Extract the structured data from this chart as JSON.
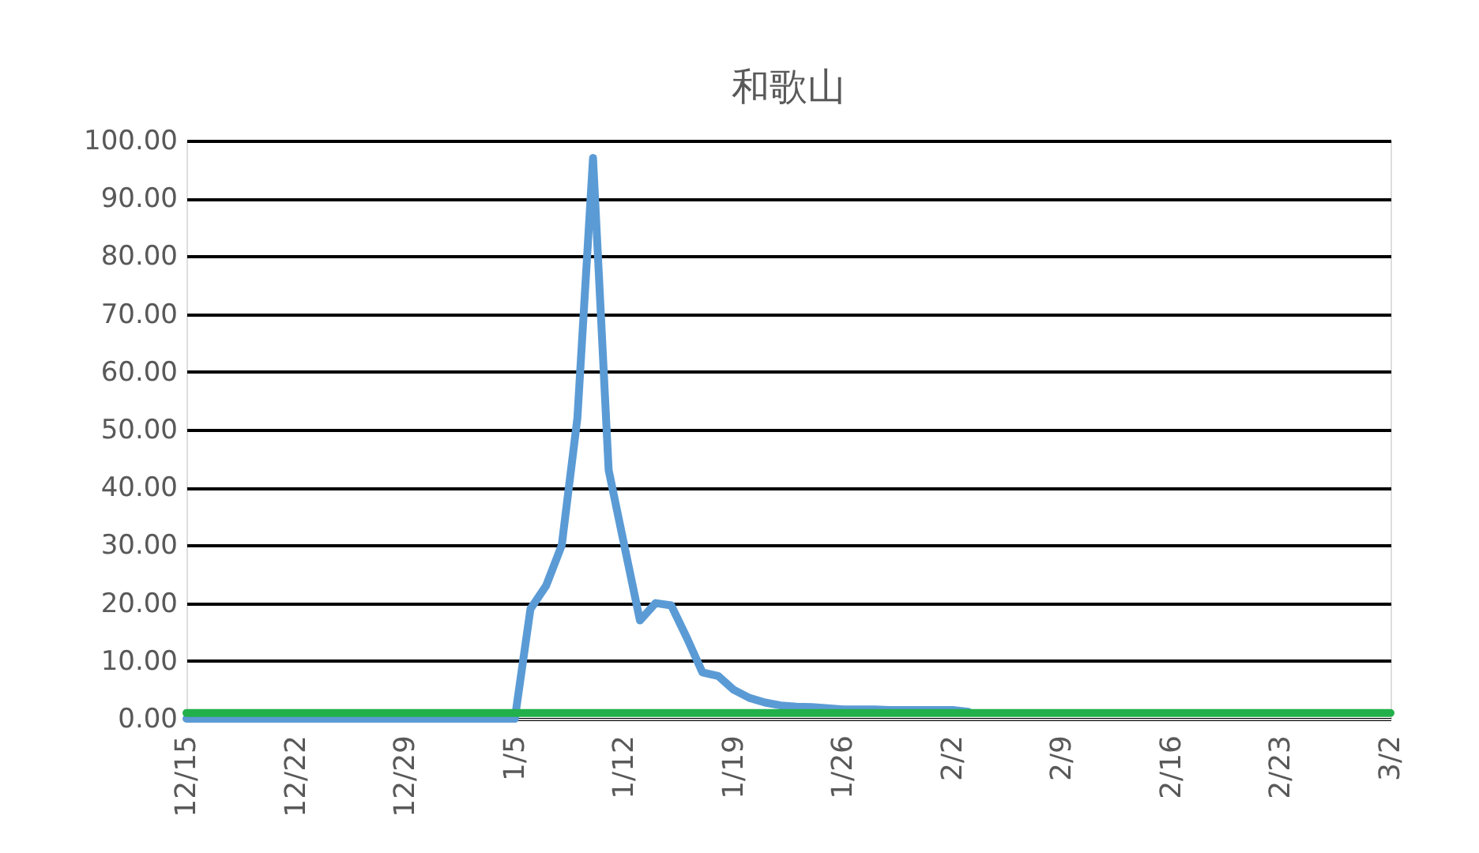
{
  "chart_data": {
    "type": "line",
    "title": "和歌山",
    "categories": [
      "12/15",
      null,
      null,
      null,
      null,
      null,
      null,
      "12/22",
      null,
      null,
      null,
      null,
      null,
      null,
      "12/29",
      null,
      null,
      null,
      null,
      null,
      null,
      "1/5",
      null,
      null,
      null,
      null,
      null,
      null,
      "1/12",
      null,
      null,
      null,
      null,
      null,
      null,
      "1/19",
      null,
      null,
      null,
      null,
      null,
      null,
      "1/26",
      null,
      null,
      null,
      null,
      null,
      null,
      "2/2",
      null,
      null,
      null,
      null,
      null,
      null,
      "2/9",
      null,
      null,
      null,
      null,
      null,
      null,
      "2/16",
      null,
      null,
      null,
      null,
      null,
      null,
      "2/23",
      null,
      null,
      null,
      null,
      null,
      null,
      "3/2"
    ],
    "ylim": [
      0,
      100
    ],
    "yticks": [
      {
        "value": 0,
        "label": "0.00"
      },
      {
        "value": 10,
        "label": "10.00"
      },
      {
        "value": 20,
        "label": "20.00"
      },
      {
        "value": 30,
        "label": "30.00"
      },
      {
        "value": 40,
        "label": "40.00"
      },
      {
        "value": 50,
        "label": "50.00"
      },
      {
        "value": 60,
        "label": "60.00"
      },
      {
        "value": 70,
        "label": "70.00"
      },
      {
        "value": 80,
        "label": "80.00"
      },
      {
        "value": 90,
        "label": "90.00"
      },
      {
        "value": 100,
        "label": "100.00"
      }
    ],
    "grid": "y",
    "legend": false,
    "marker": "none",
    "line_style": "solid",
    "series": [
      {
        "color": "#5b9bd5",
        "values": [
          0,
          0,
          0,
          0,
          0,
          0,
          0,
          0,
          0,
          0,
          0,
          0,
          0,
          0,
          0,
          0,
          0,
          0,
          0,
          0,
          0,
          0,
          19,
          23,
          30,
          52,
          97,
          43,
          30,
          17,
          20,
          19.6,
          14,
          8,
          7.4,
          5,
          3.6,
          2.8,
          2.3,
          2.1,
          2,
          1.8,
          1.6,
          1.6,
          1.6,
          1.5,
          1.5,
          1.5,
          1.5,
          1.5,
          1.2,
          null,
          null,
          null,
          null,
          null,
          null,
          null,
          null,
          null,
          null,
          null,
          null,
          null,
          null,
          null,
          null,
          null,
          null,
          null,
          null,
          null,
          null,
          null,
          null,
          null,
          null,
          null
        ]
      },
      {
        "color": "#22b04b",
        "values": [
          1,
          1,
          1,
          1,
          1,
          1,
          1,
          1,
          1,
          1,
          1,
          1,
          1,
          1,
          1,
          1,
          1,
          1,
          1,
          1,
          1,
          1,
          1,
          1,
          1,
          1,
          1,
          1,
          1,
          1,
          1,
          1,
          1,
          1,
          1,
          1,
          1,
          1,
          1,
          1,
          1,
          1,
          1,
          1,
          1,
          1,
          1,
          1,
          1,
          1,
          1,
          1,
          1,
          1,
          1,
          1,
          1,
          1,
          1,
          1,
          1,
          1,
          1,
          1,
          1,
          1,
          1,
          1,
          1,
          1,
          1,
          1,
          1,
          1,
          1,
          1,
          1,
          1
        ]
      }
    ]
  }
}
